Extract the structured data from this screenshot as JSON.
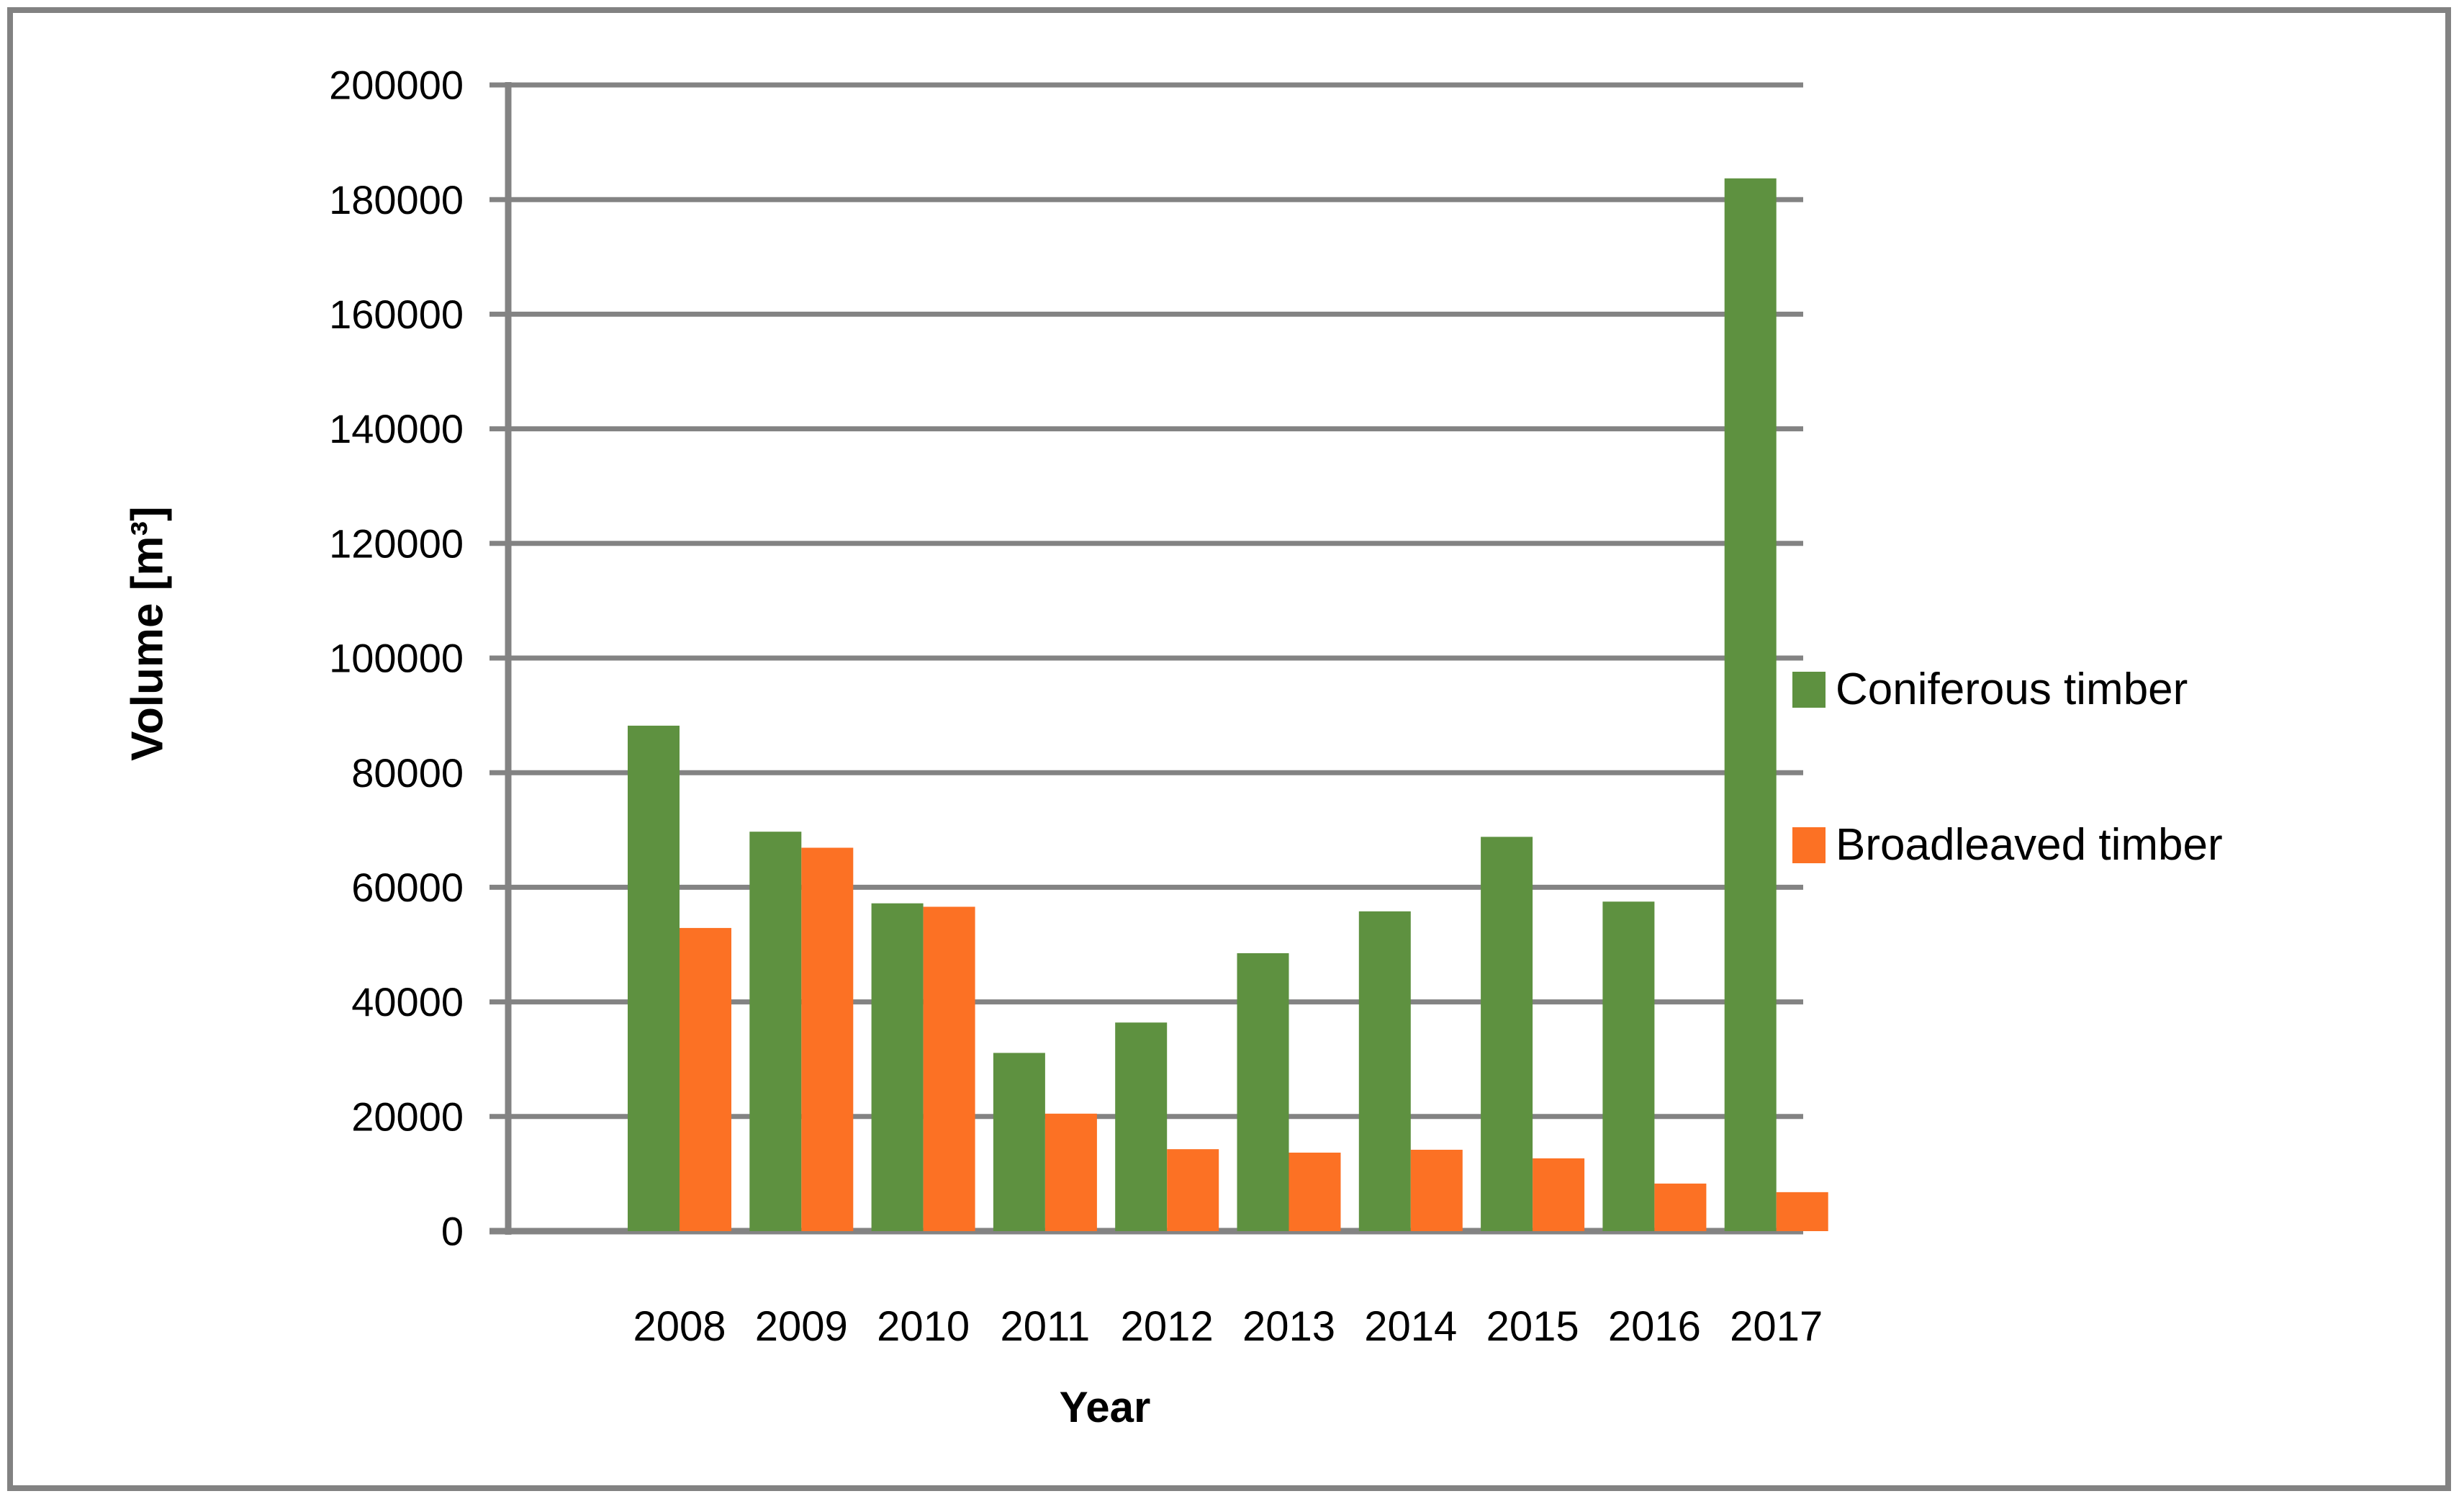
{
  "chart_data": {
    "type": "bar",
    "title": "",
    "categories": [
      "2008",
      "2009",
      "2010",
      "2011",
      "2012",
      "2013",
      "2014",
      "2015",
      "2016",
      "2017"
    ],
    "series": [
      {
        "name": "Coniferous timber",
        "color": "#5E9140",
        "values": [
          88200,
          69700,
          57200,
          31100,
          36400,
          48500,
          55800,
          68800,
          57500,
          183700
        ]
      },
      {
        "name": "Broadleaved timber",
        "color": "#FC7124",
        "values": [
          52900,
          66900,
          56600,
          20500,
          14300,
          13700,
          14200,
          12700,
          8300,
          6800
        ]
      }
    ],
    "xlabel": "Year",
    "ylabel": "Volume [m³]",
    "ylim": [
      0,
      200000
    ],
    "ytick_step": 20000,
    "y_tick_labels": [
      "0",
      "20000",
      "40000",
      "60000",
      "80000",
      "100000",
      "120000",
      "140000",
      "160000",
      "180000",
      "200000"
    ],
    "grid": "horizontal-only",
    "legend_position": "right"
  },
  "colors": {
    "grid": "#838383",
    "axis": "#838383",
    "frame_border": "#828282",
    "background": "#FFFFFF",
    "text": "#000000"
  }
}
